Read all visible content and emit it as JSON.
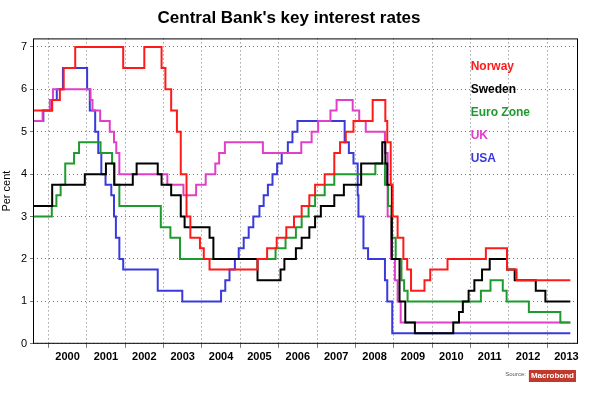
{
  "chart_data": {
    "type": "line",
    "title": "Central Bank's key interest rates",
    "y_label": "Per cent",
    "source_label": "Source:",
    "source": "Macrobond",
    "line_style": "step",
    "grid": true,
    "legend": "upper right",
    "xlim": [
      1999.6,
      2013.8
    ],
    "xticks": [
      2000,
      2001,
      2002,
      2003,
      2004,
      2005,
      2006,
      2007,
      2008,
      2009,
      2010,
      2011,
      2012,
      2013
    ],
    "ylim": [
      0,
      7.2
    ],
    "yticks": [
      0,
      1,
      2,
      3,
      4,
      5,
      6,
      7
    ],
    "series": [
      {
        "name": "Norway",
        "color": "#ff1a1a",
        "x": [
          1999.6,
          2000.1,
          2000.3,
          2000.4,
          2000.7,
          2001.95,
          2002.5,
          2002.95,
          2003.05,
          2003.2,
          2003.35,
          2003.45,
          2003.6,
          2003.7,
          2003.95,
          2004.05,
          2004.2,
          2005.45,
          2005.7,
          2005.95,
          2006.2,
          2006.4,
          2006.6,
          2006.8,
          2006.95,
          2007.2,
          2007.45,
          2007.6,
          2007.75,
          2007.95,
          2008.45,
          2008.78,
          2008.83,
          2008.92,
          2008.97,
          2009.1,
          2009.25,
          2009.35,
          2009.45,
          2009.8,
          2009.95,
          2010.4,
          2011.4,
          2011.95,
          2012.2,
          2013.6
        ],
        "values": [
          5.5,
          5.75,
          6.0,
          6.5,
          7.0,
          6.5,
          7.0,
          6.5,
          6.0,
          5.5,
          5.0,
          4.0,
          3.0,
          2.5,
          2.25,
          2.0,
          1.75,
          2.0,
          2.25,
          2.5,
          2.75,
          3.0,
          3.25,
          3.5,
          3.75,
          4.0,
          4.5,
          4.75,
          5.0,
          5.25,
          5.75,
          5.25,
          4.75,
          3.75,
          3.0,
          2.5,
          2.0,
          1.75,
          1.25,
          1.5,
          1.75,
          2.0,
          2.25,
          1.75,
          1.5,
          1.5
        ]
      },
      {
        "name": "Sweden",
        "color": "#000000",
        "x": [
          1999.6,
          1999.85,
          2000.1,
          2000.95,
          2001.5,
          2001.72,
          2002.2,
          2002.3,
          2002.85,
          2002.95,
          2003.2,
          2003.45,
          2003.55,
          2004.2,
          2004.3,
          2005.45,
          2006.05,
          2006.15,
          2006.45,
          2006.6,
          2006.8,
          2006.95,
          2007.1,
          2007.45,
          2007.7,
          2008.15,
          2008.7,
          2008.78,
          2008.83,
          2008.95,
          2009.15,
          2009.3,
          2009.55,
          2010.55,
          2010.7,
          2010.8,
          2010.95,
          2011.1,
          2011.3,
          2011.5,
          2011.95,
          2012.15,
          2012.7,
          2012.95,
          2013.6
        ],
        "values": [
          3.25,
          3.25,
          3.75,
          4.0,
          4.25,
          3.75,
          4.0,
          4.25,
          4.0,
          3.75,
          3.5,
          3.0,
          2.75,
          2.5,
          2.0,
          1.5,
          1.75,
          2.0,
          2.25,
          2.5,
          2.75,
          3.0,
          3.25,
          3.5,
          3.75,
          4.25,
          4.75,
          4.25,
          3.75,
          2.0,
          1.0,
          0.5,
          0.25,
          0.5,
          0.75,
          1.0,
          1.25,
          1.5,
          1.75,
          2.0,
          1.75,
          1.5,
          1.25,
          1.0,
          1.0
        ]
      },
      {
        "name": "Euro Zone",
        "color": "#1f9a2e",
        "x": [
          1999.6,
          2000.09,
          2000.21,
          2000.32,
          2000.44,
          2000.67,
          2000.8,
          2001.36,
          2001.66,
          2001.71,
          2001.85,
          2002.93,
          2003.18,
          2003.43,
          2005.92,
          2006.18,
          2006.45,
          2006.6,
          2006.78,
          2006.95,
          2007.2,
          2007.45,
          2008.52,
          2008.77,
          2008.85,
          2008.94,
          2009.05,
          2009.2,
          2009.27,
          2009.36,
          2011.27,
          2011.52,
          2011.84,
          2011.94,
          2012.52,
          2013.34,
          2013.6
        ],
        "values": [
          3.0,
          3.25,
          3.5,
          3.75,
          4.25,
          4.5,
          4.75,
          4.5,
          4.25,
          3.75,
          3.25,
          2.75,
          2.5,
          2.0,
          2.25,
          2.5,
          2.75,
          3.0,
          3.25,
          3.5,
          3.75,
          4.0,
          4.25,
          3.75,
          3.25,
          2.5,
          2.0,
          1.5,
          1.25,
          1.0,
          1.25,
          1.5,
          1.25,
          1.0,
          0.75,
          0.5,
          0.5
        ]
      },
      {
        "name": "UK",
        "color": "#e040c8",
        "x": [
          1999.6,
          1999.85,
          2000.04,
          2000.12,
          2001.1,
          2001.15,
          2001.35,
          2001.6,
          2001.71,
          2001.77,
          2001.85,
          2003.1,
          2003.52,
          2003.85,
          2004.1,
          2004.35,
          2004.45,
          2004.6,
          2005.59,
          2006.59,
          2006.86,
          2007.03,
          2007.35,
          2007.51,
          2007.93,
          2008.1,
          2008.27,
          2008.77,
          2008.84,
          2008.93,
          2009.03,
          2009.1,
          2009.18,
          2013.6
        ],
        "values": [
          5.25,
          5.5,
          5.75,
          6.0,
          5.75,
          5.5,
          5.25,
          5.0,
          4.75,
          4.5,
          4.0,
          3.75,
          3.5,
          3.75,
          4.0,
          4.25,
          4.5,
          4.75,
          4.5,
          4.75,
          5.0,
          5.25,
          5.5,
          5.75,
          5.5,
          5.25,
          5.0,
          4.5,
          3.0,
          2.0,
          1.5,
          1.0,
          0.5,
          0.5
        ]
      },
      {
        "name": "USA",
        "color": "#3a3adc",
        "x": [
          1999.6,
          1999.87,
          2000.09,
          2000.22,
          2000.38,
          2001.01,
          2001.08,
          2001.22,
          2001.3,
          2001.38,
          2001.49,
          2001.64,
          2001.71,
          2001.76,
          2001.85,
          2001.95,
          2002.85,
          2003.49,
          2004.5,
          2004.61,
          2004.72,
          2004.86,
          2004.96,
          2005.09,
          2005.22,
          2005.34,
          2005.5,
          2005.61,
          2005.72,
          2005.84,
          2005.96,
          2006.08,
          2006.24,
          2006.36,
          2006.49,
          2007.72,
          2007.83,
          2007.95,
          2008.06,
          2008.08,
          2008.21,
          2008.33,
          2008.77,
          2008.83,
          2008.96,
          2013.6
        ],
        "values": [
          5.25,
          5.5,
          5.75,
          6.0,
          6.5,
          6.0,
          5.5,
          5.0,
          4.5,
          4.0,
          3.75,
          3.5,
          3.0,
          2.5,
          2.0,
          1.75,
          1.25,
          1.0,
          1.25,
          1.5,
          1.75,
          2.0,
          2.25,
          2.5,
          2.75,
          3.0,
          3.25,
          3.5,
          3.75,
          4.0,
          4.25,
          4.5,
          4.75,
          5.0,
          5.25,
          4.75,
          4.5,
          4.25,
          3.5,
          3.0,
          2.25,
          2.0,
          1.5,
          1.0,
          0.25,
          0.25
        ]
      }
    ]
  }
}
